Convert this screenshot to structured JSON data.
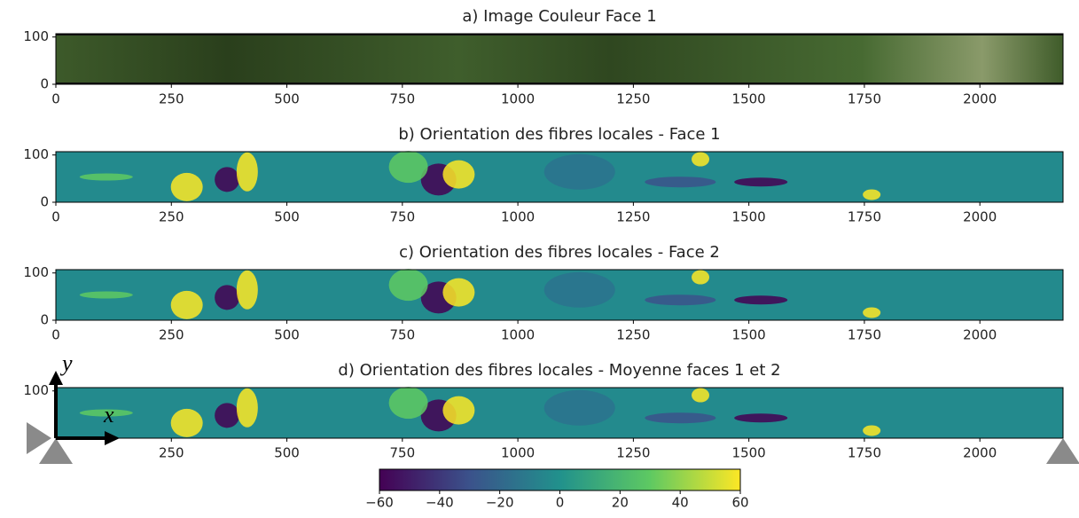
{
  "chart_data": [
    {
      "type": "image",
      "title": "a) Image Couleur Face 1",
      "xlim": [
        0,
        2180
      ],
      "ylim": [
        0,
        107
      ],
      "xticks": [
        0,
        250,
        500,
        750,
        1000,
        1250,
        1500,
        1750,
        2000
      ],
      "yticks": [
        0,
        100
      ]
    },
    {
      "type": "image",
      "title": "b) Orientation des fibres locales - Face 1",
      "colormap": "viridis",
      "xlim": [
        0,
        2180
      ],
      "ylim": [
        0,
        107
      ],
      "xticks": [
        0,
        250,
        500,
        750,
        1000,
        1250,
        1500,
        1750,
        2000
      ],
      "yticks": [
        0,
        100
      ]
    },
    {
      "type": "image",
      "title": "c) Orientation des fibres locales - Face 2",
      "colormap": "viridis",
      "xlim": [
        0,
        2180
      ],
      "ylim": [
        0,
        107
      ],
      "xticks": [
        0,
        250,
        500,
        750,
        1000,
        1250,
        1500,
        1750,
        2000
      ],
      "yticks": [
        0,
        100
      ]
    },
    {
      "type": "image",
      "title": "d) Orientation des fibres locales - Moyenne faces 1 et 2",
      "colormap": "viridis",
      "xlim": [
        0,
        2180
      ],
      "ylim": [
        0,
        107
      ],
      "xticks": [
        250,
        500,
        750,
        1000,
        1250,
        1500,
        1750,
        2000
      ],
      "yticks": [
        100
      ]
    },
    {
      "type": "colorbar",
      "colormap": "viridis",
      "xlim": [
        -60,
        60
      ],
      "xticks": [
        {
          "value": -60,
          "label": "−60"
        },
        {
          "value": -40,
          "label": "−40"
        },
        {
          "value": -20,
          "label": "−20"
        },
        0,
        20,
        40,
        60
      ]
    }
  ],
  "annotations": {
    "y_symbol": "y⃗",
    "x_symbol": "x⃗"
  }
}
